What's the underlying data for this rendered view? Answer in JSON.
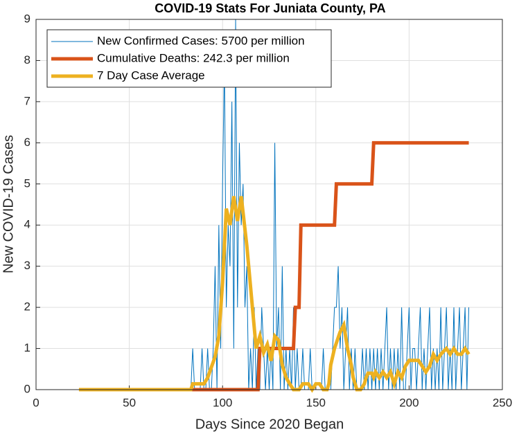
{
  "chart_data": {
    "type": "line",
    "title": "COVID-19 Stats For Juniata County, PA",
    "x_label": "Days Since 2020 Began",
    "y_label": "New COVID-19 Cases",
    "xlim": [
      0,
      250
    ],
    "xticks": [
      0,
      50,
      100,
      150,
      200,
      250
    ],
    "ylim": [
      0,
      9
    ],
    "yticks": [
      0,
      1,
      2,
      3,
      4,
      5,
      6,
      7,
      8,
      9
    ],
    "grid": true,
    "legend": "upper-left",
    "series": [
      {
        "name": "New Confirmed Cases: 5700 per million",
        "color": "#0072BD",
        "width": 1,
        "x": [
          23,
          83,
          84,
          85,
          86,
          87,
          88,
          89,
          90,
          91,
          92,
          93,
          94,
          95,
          96,
          97,
          98,
          99,
          100,
          101,
          102,
          103,
          104,
          105,
          106,
          107,
          108,
          109,
          110,
          111,
          112,
          113,
          114,
          115,
          116,
          117,
          118,
          119,
          120,
          121,
          122,
          123,
          124,
          125,
          126,
          127,
          128,
          129,
          130,
          131,
          132,
          133,
          134,
          135,
          136,
          137,
          138,
          139,
          140,
          141,
          142,
          143,
          144,
          145,
          146,
          147,
          148,
          149,
          150,
          151,
          152,
          153,
          154,
          155,
          156,
          157,
          158,
          159,
          160,
          161,
          162,
          163,
          164,
          165,
          166,
          167,
          168,
          169,
          170,
          171,
          172,
          173,
          174,
          175,
          176,
          177,
          178,
          179,
          180,
          181,
          182,
          183,
          184,
          185,
          186,
          187,
          188,
          189,
          190,
          191,
          192,
          193,
          194,
          195,
          196,
          197,
          198,
          199,
          200,
          201,
          202,
          203,
          204,
          205,
          206,
          207,
          208,
          209,
          210,
          211,
          212,
          213,
          214,
          215,
          216,
          217,
          218,
          219,
          220,
          221,
          222,
          223,
          224,
          225,
          226,
          227,
          228,
          229,
          230,
          231,
          232
        ],
        "values": [
          0,
          0,
          1,
          0,
          0,
          0,
          0,
          1,
          0,
          0,
          1,
          0,
          0,
          1,
          3,
          0,
          4,
          1,
          5,
          8,
          2,
          4,
          3,
          7,
          1,
          9,
          2,
          6,
          4,
          5,
          2,
          3,
          0,
          1,
          0,
          2,
          0,
          1,
          0,
          2,
          1,
          0,
          1,
          0,
          1,
          0,
          6,
          1,
          2,
          0,
          3,
          0,
          1,
          0,
          1,
          0,
          2,
          0,
          1,
          0,
          0,
          1,
          0,
          0,
          0,
          1,
          0,
          0,
          0,
          0,
          0,
          0,
          1,
          0,
          0,
          0,
          0,
          1,
          2,
          2,
          3,
          1,
          2,
          0,
          1,
          2,
          0,
          1,
          0,
          1,
          0,
          0,
          0,
          1,
          0,
          1,
          0,
          1,
          0,
          1,
          0,
          1,
          0,
          1,
          0,
          1,
          2,
          0,
          1,
          0,
          1,
          0,
          1,
          0,
          2,
          0,
          0,
          1,
          2,
          0,
          1,
          1,
          0,
          1,
          2,
          0,
          1,
          0,
          1,
          2,
          0,
          1,
          0,
          1,
          0,
          2,
          0,
          1,
          2,
          0,
          1,
          0,
          2,
          0,
          1,
          2,
          0,
          1,
          2,
          0,
          2
        ]
      },
      {
        "name": "Cumulative Deaths: 242.3 per million",
        "color": "#D95319",
        "width": 5,
        "x": [
          83,
          119,
          120,
          138,
          139,
          141,
          142,
          160,
          161,
          180,
          181,
          232
        ],
        "values": [
          0,
          0,
          1,
          1,
          2,
          2,
          4,
          4,
          5,
          5,
          6,
          6
        ]
      },
      {
        "name": "7 Day Case Average",
        "color": "#EDB120",
        "width": 5,
        "x": [
          23,
          83,
          84,
          90,
          92,
          96,
          98,
          100,
          102,
          104,
          106,
          108,
          110,
          113,
          116,
          118,
          120,
          122,
          124,
          126,
          128,
          130,
          132,
          134,
          136,
          138,
          141,
          143,
          146,
          148,
          150,
          152,
          154,
          156,
          157,
          158,
          160,
          163,
          165,
          167,
          169,
          170,
          172,
          174,
          176,
          177,
          178,
          180,
          181,
          182,
          184,
          186,
          188,
          190,
          192,
          194,
          196,
          198,
          200,
          205,
          207,
          209,
          211,
          213,
          215,
          217,
          220,
          222,
          224,
          226,
          228,
          230,
          232
        ],
        "values": [
          0,
          0,
          0.14,
          0.14,
          0.29,
          0.8,
          1.3,
          2.6,
          4.4,
          4.0,
          4.7,
          4.1,
          4.7,
          3.5,
          2.0,
          1.0,
          1.3,
          0.9,
          1.1,
          0.7,
          1.3,
          1.2,
          0.6,
          0.3,
          0.14,
          0,
          0,
          0.14,
          0.14,
          0,
          0.14,
          0.14,
          0,
          0,
          0.14,
          0.6,
          1.0,
          1.4,
          1.57,
          1.0,
          0.6,
          0.3,
          0,
          0,
          0.14,
          0.3,
          0.4,
          0.4,
          0.3,
          0.43,
          0.29,
          0.43,
          0.29,
          0.43,
          0.14,
          0.43,
          0.29,
          0.57,
          0.71,
          0.71,
          0.57,
          0.43,
          0.57,
          0.86,
          0.71,
          0.86,
          1.0,
          0.86,
          1.0,
          0.86,
          0.86,
          1.0,
          0.86
        ]
      }
    ]
  }
}
